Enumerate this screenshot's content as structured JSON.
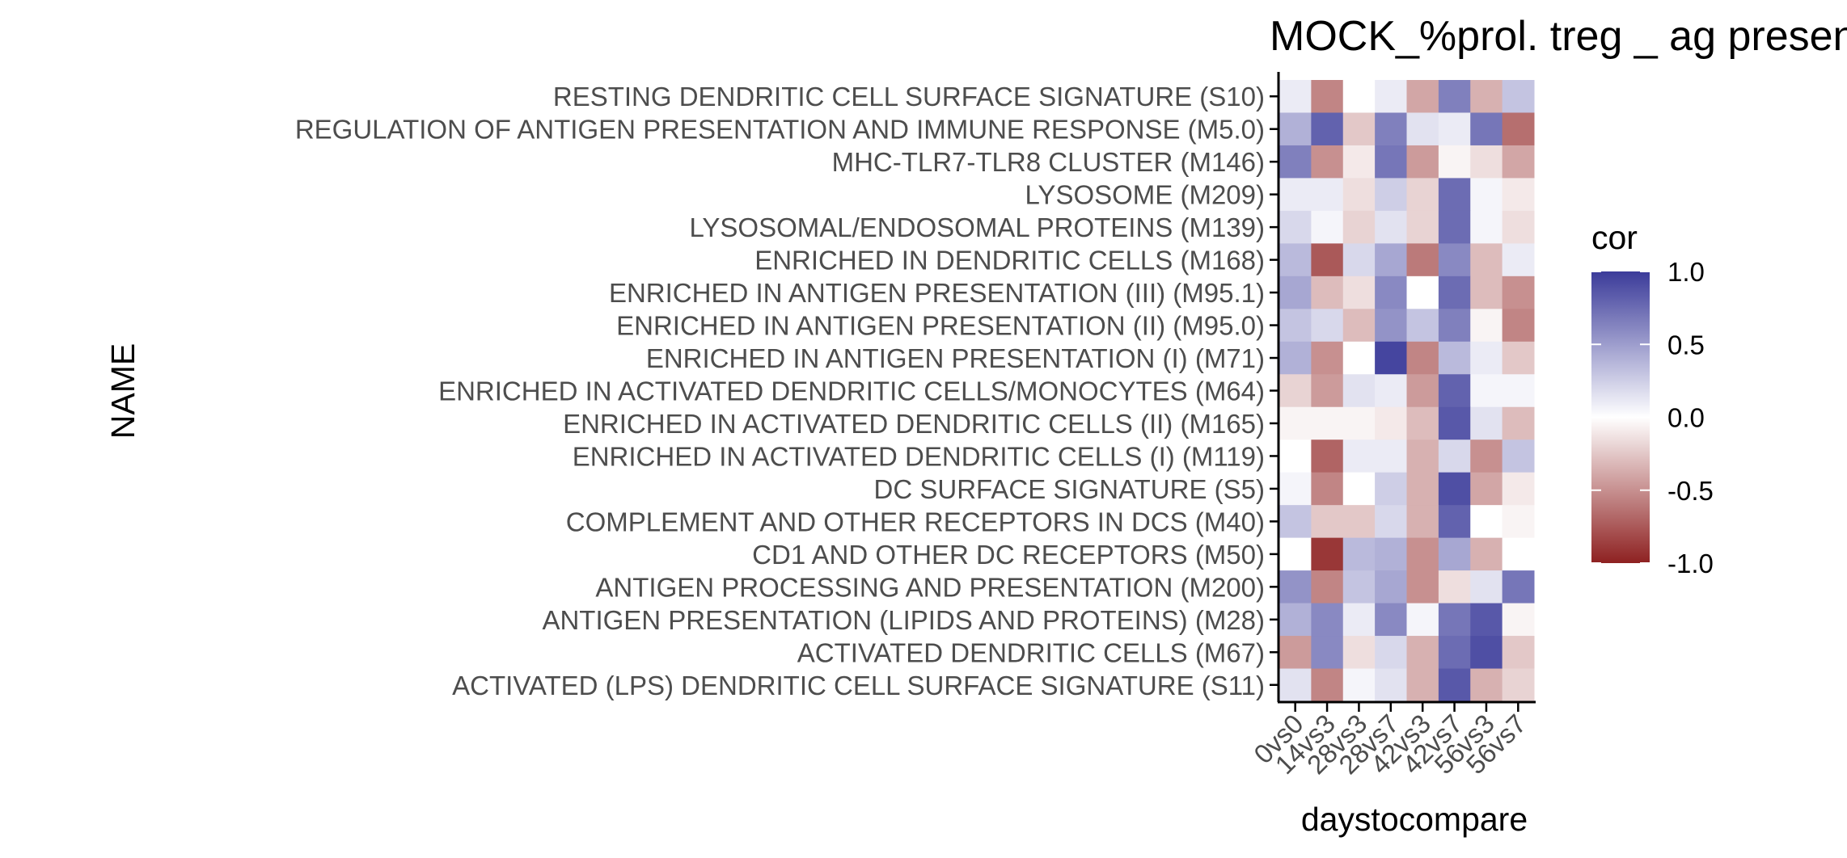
{
  "chart_data": {
    "type": "heatmap",
    "title": "MOCK_%prol. treg _ ag presentation",
    "xlabel": "daystocompare",
    "ylabel": "NAME",
    "x": [
      "0vs0",
      "14vs3",
      "28vs3",
      "28vs7",
      "42vs3",
      "42vs7",
      "56vs3",
      "56vs7"
    ],
    "y": [
      "RESTING DENDRITIC CELL SURFACE SIGNATURE (S10)",
      "REGULATION OF ANTIGEN PRESENTATION AND IMMUNE RESPONSE (M5.0)",
      "MHC-TLR7-TLR8 CLUSTER (M146)",
      "LYSOSOME (M209)",
      "LYSOSOMAL/ENDOSOMAL PROTEINS (M139)",
      "ENRICHED IN DENDRITIC CELLS (M168)",
      "ENRICHED IN ANTIGEN PRESENTATION (III) (M95.1)",
      "ENRICHED IN ANTIGEN PRESENTATION (II) (M95.0)",
      "ENRICHED IN ANTIGEN PRESENTATION (I) (M71)",
      "ENRICHED IN ACTIVATED DENDRITIC CELLS/MONOCYTES (M64)",
      "ENRICHED IN ACTIVATED DENDRITIC CELLS (II) (M165)",
      "ENRICHED IN ACTIVATED DENDRITIC CELLS (I) (M119)",
      "DC SURFACE SIGNATURE (S5)",
      "COMPLEMENT AND OTHER RECEPTORS IN DCS (M40)",
      "CD1 AND OTHER DC RECEPTORS (M50)",
      "ANTIGEN PROCESSING AND PRESENTATION (M200)",
      "ANTIGEN PRESENTATION (LIPIDS AND PROTEINS) (M28)",
      "ACTIVATED DENDRITIC CELLS (M67)",
      "ACTIVATED (LPS) DENDRITIC CELL SURFACE SIGNATURE (S11)"
    ],
    "values": [
      [
        0.1,
        -0.55,
        0.0,
        0.1,
        -0.4,
        0.65,
        -0.35,
        0.3
      ],
      [
        0.4,
        0.8,
        -0.25,
        0.65,
        0.15,
        0.1,
        0.7,
        -0.65
      ],
      [
        0.65,
        -0.5,
        -0.1,
        0.7,
        -0.45,
        -0.05,
        -0.15,
        -0.4
      ],
      [
        0.1,
        0.1,
        -0.15,
        0.25,
        -0.2,
        0.75,
        0.05,
        -0.1
      ],
      [
        0.2,
        0.05,
        -0.2,
        0.15,
        -0.2,
        0.75,
        0.05,
        -0.15
      ],
      [
        0.35,
        -0.75,
        0.2,
        0.45,
        -0.6,
        0.6,
        -0.3,
        0.1
      ],
      [
        0.45,
        -0.3,
        -0.15,
        0.6,
        0.0,
        0.75,
        -0.3,
        -0.5
      ],
      [
        0.3,
        0.2,
        -0.3,
        0.55,
        0.3,
        0.65,
        -0.05,
        -0.55
      ],
      [
        0.4,
        -0.5,
        0.0,
        0.95,
        -0.55,
        0.35,
        0.1,
        -0.25
      ],
      [
        -0.2,
        -0.45,
        0.15,
        0.1,
        -0.45,
        0.8,
        0.05,
        0.05
      ],
      [
        -0.05,
        -0.05,
        -0.05,
        -0.1,
        -0.3,
        0.85,
        0.15,
        -0.3
      ],
      [
        0.0,
        -0.7,
        0.1,
        0.1,
        -0.35,
        0.2,
        -0.5,
        0.3
      ],
      [
        0.05,
        -0.55,
        0.0,
        0.25,
        -0.35,
        0.9,
        -0.4,
        -0.1
      ],
      [
        0.3,
        -0.25,
        -0.25,
        0.2,
        -0.35,
        0.8,
        0.0,
        -0.05
      ],
      [
        0.0,
        -0.9,
        0.35,
        0.4,
        -0.5,
        0.45,
        -0.35,
        0.0
      ],
      [
        0.55,
        -0.55,
        0.3,
        0.45,
        -0.5,
        -0.15,
        0.15,
        0.7
      ],
      [
        0.4,
        0.6,
        0.1,
        0.6,
        0.05,
        0.7,
        0.85,
        -0.05
      ],
      [
        -0.45,
        0.6,
        -0.15,
        0.2,
        -0.35,
        0.75,
        0.9,
        -0.25
      ],
      [
        0.15,
        -0.55,
        0.05,
        0.15,
        -0.35,
        0.85,
        -0.35,
        -0.2
      ]
    ],
    "legend": {
      "title": "cor",
      "ticks": [
        "1.0",
        "0.5",
        "0.0",
        "-0.5",
        "-1.0"
      ],
      "range": [
        -1,
        1
      ],
      "placement": "right"
    },
    "colors": {
      "high": "#3B3B9A",
      "mid": "#FFFFFF",
      "low": "#8E2121"
    },
    "grid": false
  }
}
